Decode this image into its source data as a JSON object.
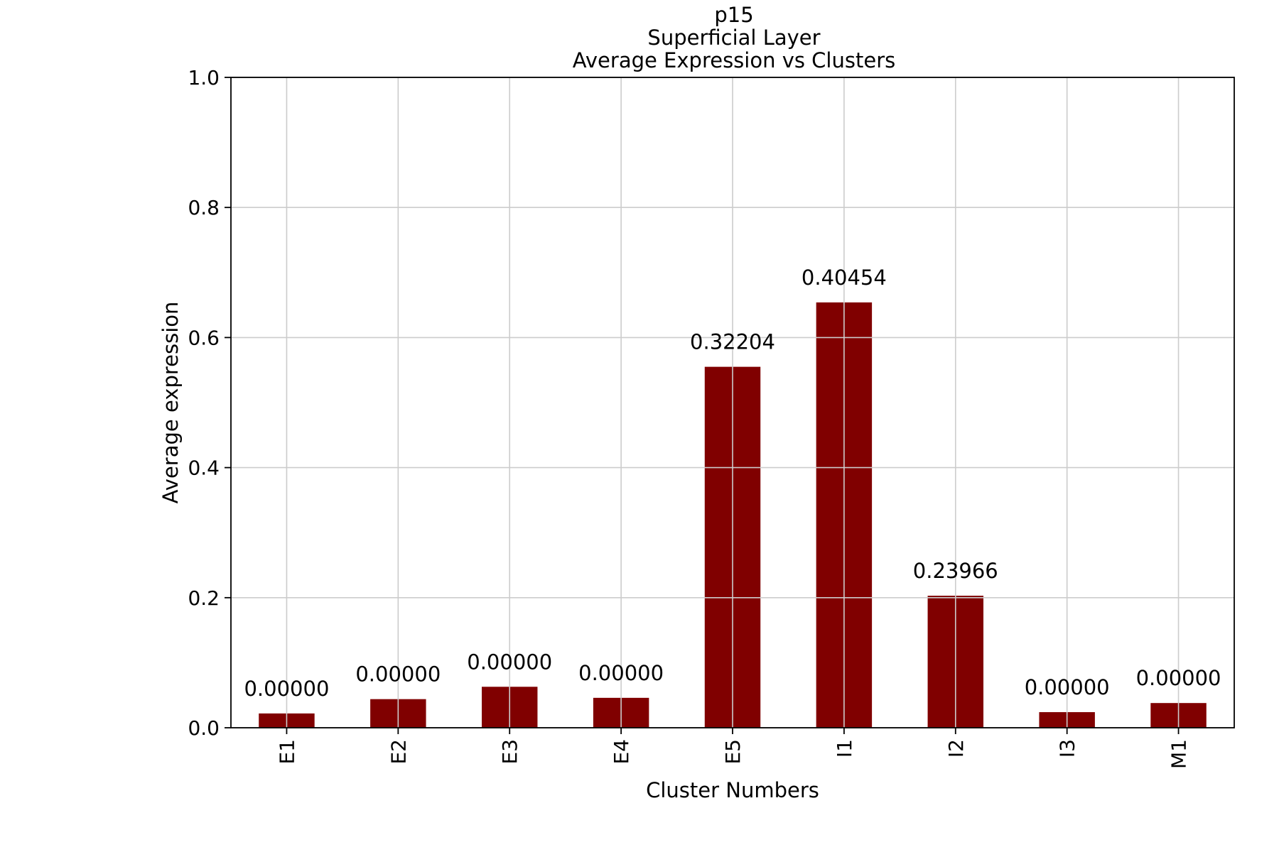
{
  "chart_data": {
    "type": "bar",
    "title_lines": [
      "p15",
      "Superficial Layer",
      "Average Expression vs Clusters"
    ],
    "xlabel": "Cluster Numbers",
    "ylabel": "Average expression",
    "categories": [
      "E1",
      "E2",
      "E3",
      "E4",
      "E5",
      "I1",
      "I2",
      "I3",
      "M1"
    ],
    "values": [
      0.022,
      0.044,
      0.063,
      0.046,
      0.555,
      0.654,
      0.203,
      0.024,
      0.038
    ],
    "data_labels": [
      "0.00000",
      "0.00000",
      "0.00000",
      "0.00000",
      "0.32204",
      "0.40454",
      "0.23966",
      "0.00000",
      "0.00000"
    ],
    "ylim": [
      0,
      1.0
    ],
    "yticks": [
      "0.0",
      "0.2",
      "0.4",
      "0.6",
      "0.8",
      "1.0"
    ],
    "grid": true,
    "bar_color": "#800000"
  }
}
